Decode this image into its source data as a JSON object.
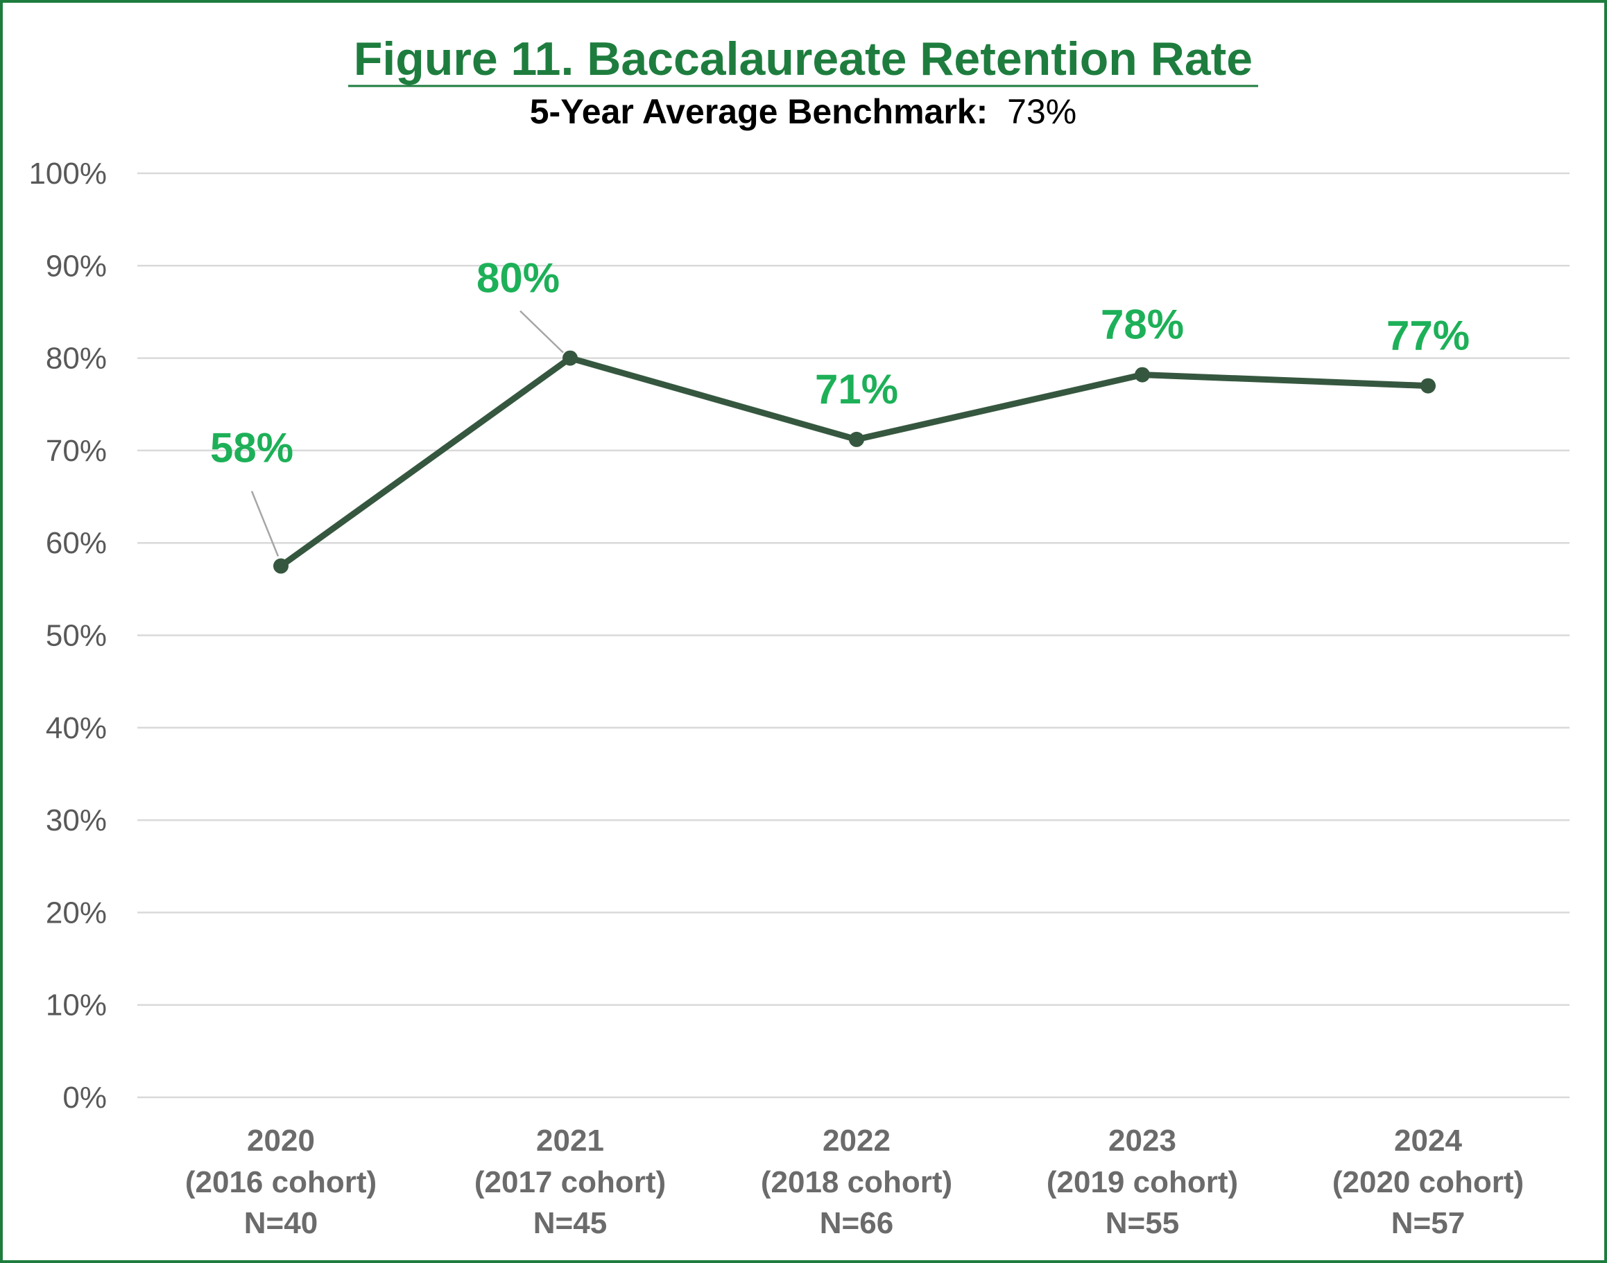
{
  "colors": {
    "title": "#1e7d3e",
    "frame": "#1e7d3e",
    "line": "#36573f",
    "data_label": "#1db058",
    "axis_text": "#595959",
    "category_text": "#6b6b6b",
    "grid": "#d9d9d9",
    "leader": "#a6a6a6"
  },
  "chart_data": {
    "type": "line",
    "title": "Figure 11. Baccalaureate Retention Rate",
    "subtitle": {
      "label": "5-Year Average Benchmark:",
      "value": "73%"
    },
    "categories": [
      {
        "year": "2020",
        "cohort": "(2016 cohort)",
        "n": "N=40"
      },
      {
        "year": "2021",
        "cohort": "(2017 cohort)",
        "n": "N=45"
      },
      {
        "year": "2022",
        "cohort": "(2018 cohort)",
        "n": "N=66"
      },
      {
        "year": "2023",
        "cohort": "(2019 cohort)",
        "n": "N=55"
      },
      {
        "year": "2024",
        "cohort": "(2020 cohort)",
        "n": "N=57"
      }
    ],
    "series": [
      {
        "values": [
          57.5,
          80,
          71.2,
          78.2,
          77.0
        ],
        "labels": [
          "58%",
          "80%",
          "71%",
          "78%",
          "77%"
        ]
      }
    ],
    "ylim": [
      0,
      100
    ],
    "yticks": [
      "0%",
      "10%",
      "20%",
      "30%",
      "40%",
      "50%",
      "60%",
      "70%",
      "80%",
      "90%",
      "100%"
    ],
    "grid": true,
    "legend": "none"
  }
}
